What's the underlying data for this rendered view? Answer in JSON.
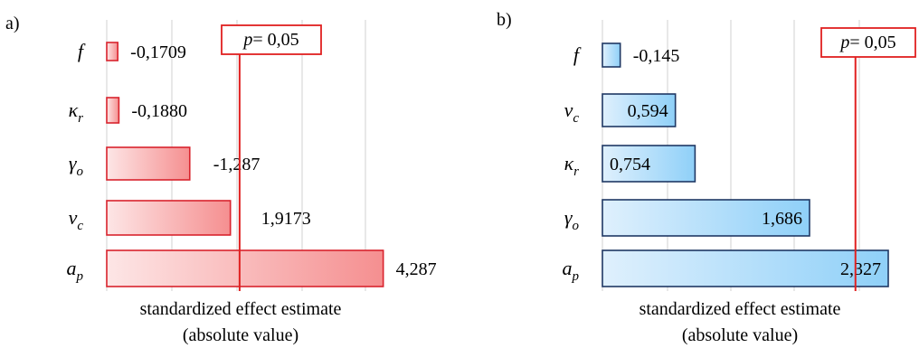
{
  "charts": [
    {
      "panel_label": "a)",
      "threshold_label": "p = 0,05",
      "threshold_text": {
        "p": "p",
        "rest": "= 0,05"
      },
      "xlabel_line1": "standardized effect estimate",
      "xlabel_line2": "(absolute value)",
      "colors": {
        "bar_fill_light": "#fde6e6",
        "bar_fill_dark": "#f58f90",
        "bar_stroke": "#d9232d",
        "threshold": "#e02020",
        "grid": "#d9d9d9"
      },
      "bars": [
        {
          "label_main": "f",
          "label_sub": "",
          "value_label": "-0,1709"
        },
        {
          "label_main": "κ",
          "label_sub": "r",
          "value_label": "-0,1880"
        },
        {
          "label_main": "γ",
          "label_sub": "o",
          "value_label": "-1,287"
        },
        {
          "label_main": "v",
          "label_sub": "c",
          "value_label": "1,9173"
        },
        {
          "label_main": "a",
          "label_sub": "p",
          "value_label": "4,287"
        }
      ]
    },
    {
      "panel_label": "b)",
      "threshold_label": "p = 0,05",
      "threshold_text": {
        "p": "p",
        "rest": "= 0,05"
      },
      "xlabel_line1": "standardized effect estimate",
      "xlabel_line2": "(absolute value)",
      "colors": {
        "bar_fill_light": "#dff0fd",
        "bar_fill_dark": "#8fd0f8",
        "bar_stroke": "#1f3864",
        "threshold": "#e02020",
        "grid": "#d9d9d9"
      },
      "bars": [
        {
          "label_main": "f",
          "label_sub": "",
          "value_label": "-0,145"
        },
        {
          "label_main": "v",
          "label_sub": "c",
          "value_label": "0,594"
        },
        {
          "label_main": "κ",
          "label_sub": "r",
          "value_label": "0,754"
        },
        {
          "label_main": "γ",
          "label_sub": "o",
          "value_label": "1,686"
        },
        {
          "label_main": "a",
          "label_sub": "p",
          "value_label": "2,327"
        }
      ]
    }
  ],
  "chart_data": [
    {
      "type": "bar",
      "orientation": "horizontal",
      "categories": [
        "f",
        "κr",
        "γo",
        "vc",
        "ap"
      ],
      "values": [
        0.1709,
        0.188,
        1.287,
        1.9173,
        4.287
      ],
      "value_labels": [
        "-0,1709",
        "-0,1880",
        "-1,287",
        "1,9173",
        "4,287"
      ],
      "threshold": 2.06,
      "threshold_label": "p = 0,05",
      "xlabel": "standardized effect estimate (absolute value)",
      "xlim": [
        0,
        5
      ],
      "grid": true
    },
    {
      "type": "bar",
      "orientation": "horizontal",
      "categories": [
        "f",
        "vc",
        "κr",
        "γo",
        "ap"
      ],
      "values": [
        0.145,
        0.594,
        0.754,
        1.686,
        2.327
      ],
      "value_labels": [
        "-0,145",
        "0,594",
        "0,754",
        "1,686",
        "2,327"
      ],
      "threshold": 2.06,
      "threshold_label": "p = 0,05",
      "xlabel": "standardized effect estimate (absolute value)",
      "xlim": [
        0,
        2.5
      ],
      "grid": true
    }
  ]
}
